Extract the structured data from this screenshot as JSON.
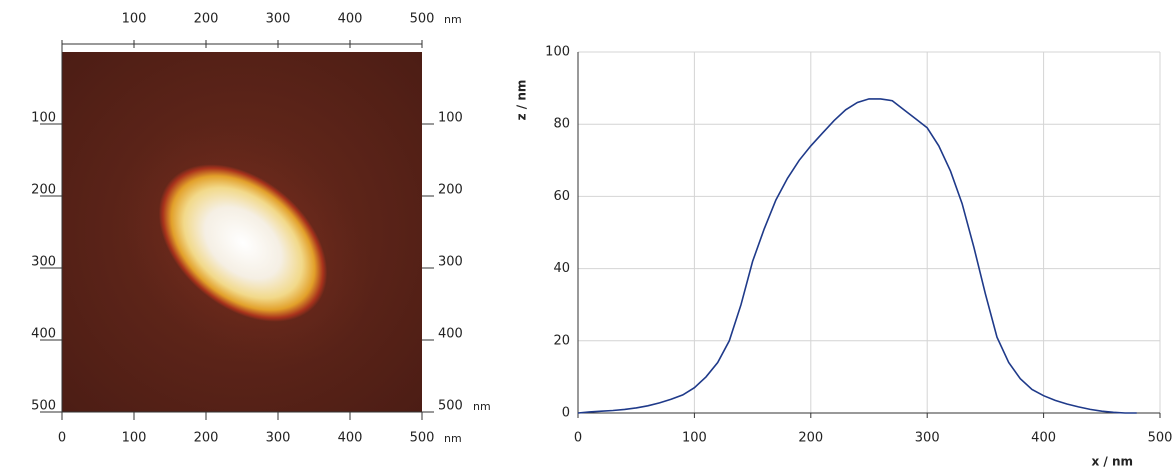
{
  "chart_data": [
    {
      "type": "image",
      "unit": "nm",
      "xlim": [
        0,
        500
      ],
      "ylim": [
        0,
        500
      ],
      "xticks": [
        0,
        100,
        200,
        300,
        400,
        500
      ],
      "yticks": [
        100,
        200,
        300,
        400,
        500
      ]
    },
    {
      "type": "line",
      "x_label": "x / nm",
      "y_label": "z / nm",
      "xlim": [
        0,
        500
      ],
      "ylim": [
        0,
        100
      ],
      "xticks": [
        0,
        100,
        200,
        300,
        400,
        500
      ],
      "yticks": [
        0,
        20,
        40,
        60,
        80,
        100
      ],
      "grid": true,
      "series": [
        {
          "color": "#1f3a8a",
          "x": [
            0,
            10,
            20,
            30,
            40,
            50,
            60,
            70,
            80,
            90,
            100,
            110,
            120,
            130,
            140,
            150,
            160,
            170,
            180,
            190,
            200,
            210,
            220,
            230,
            240,
            250,
            260,
            270,
            280,
            290,
            300,
            310,
            320,
            330,
            340,
            350,
            360,
            370,
            380,
            390,
            400,
            410,
            420,
            430,
            440,
            450,
            460,
            470,
            480
          ],
          "values": [
            0,
            0.3,
            0.5,
            0.7,
            1,
            1.4,
            2,
            2.8,
            3.8,
            5,
            7,
            10,
            14,
            20,
            30,
            42,
            51,
            59,
            65,
            70,
            74,
            77.5,
            81,
            84,
            86,
            87,
            87,
            86.5,
            84,
            81.5,
            79,
            74,
            67,
            58,
            46,
            33,
            21,
            14,
            9.5,
            6.5,
            4.8,
            3.5,
            2.5,
            1.7,
            1,
            0.5,
            0.2,
            0,
            0
          ]
        }
      ]
    }
  ]
}
